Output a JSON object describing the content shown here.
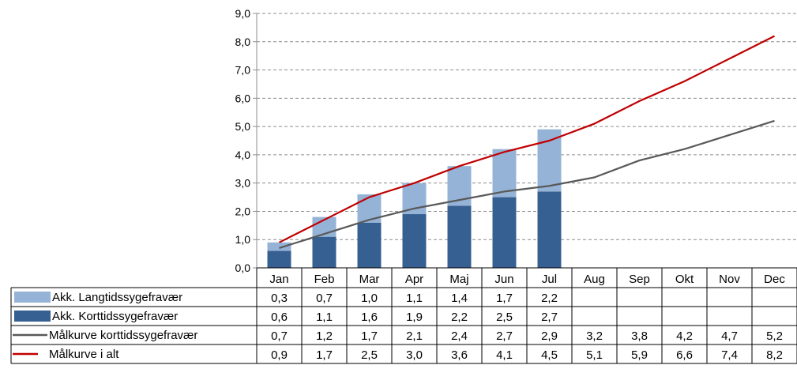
{
  "chart_data": {
    "type": "bar",
    "stacked": true,
    "title": "",
    "xlabel": "",
    "ylabel": "",
    "ylim": [
      0,
      9
    ],
    "yticks": [
      "0,0",
      "1,0",
      "2,0",
      "3,0",
      "4,0",
      "5,0",
      "6,0",
      "7,0",
      "8,0",
      "9,0"
    ],
    "grid": "dashed-horizontal",
    "categories": [
      "Jan",
      "Feb",
      "Mar",
      "Apr",
      "Maj",
      "Jun",
      "Jul",
      "Aug",
      "Sep",
      "Okt",
      "Nov",
      "Dec"
    ],
    "series": [
      {
        "name": "Akk. Korttidssygefravær",
        "kind": "bar",
        "color": "#376092",
        "values": [
          0.6,
          1.1,
          1.6,
          1.9,
          2.2,
          2.5,
          2.7,
          null,
          null,
          null,
          null,
          null
        ],
        "labels": [
          "0,6",
          "1,1",
          "1,6",
          "1,9",
          "2,2",
          "2,5",
          "2,7",
          "",
          "",
          "",
          "",
          ""
        ]
      },
      {
        "name": "Akk. Langtidssygefravær",
        "kind": "bar",
        "color": "#95b3d7",
        "values": [
          0.3,
          0.7,
          1.0,
          1.1,
          1.4,
          1.7,
          2.2,
          null,
          null,
          null,
          null,
          null
        ],
        "labels": [
          "0,3",
          "0,7",
          "1,0",
          "1,1",
          "1,4",
          "1,7",
          "2,2",
          "",
          "",
          "",
          "",
          ""
        ]
      },
      {
        "name": "Målkurve korttidssygefravær",
        "kind": "line",
        "color": "#595959",
        "values": [
          0.7,
          1.2,
          1.7,
          2.1,
          2.4,
          2.7,
          2.9,
          3.2,
          3.8,
          4.2,
          4.7,
          5.2
        ],
        "labels": [
          "0,7",
          "1,2",
          "1,7",
          "2,1",
          "2,4",
          "2,7",
          "2,9",
          "3,2",
          "3,8",
          "4,2",
          "4,7",
          "5,2"
        ]
      },
      {
        "name": "Målkurve i alt",
        "kind": "line",
        "color": "#c00000",
        "values": [
          0.9,
          1.7,
          2.5,
          3.0,
          3.6,
          4.1,
          4.5,
          5.1,
          5.9,
          6.6,
          7.4,
          8.2
        ],
        "labels": [
          "0,9",
          "1,7",
          "2,5",
          "3,0",
          "3,6",
          "4,1",
          "4,5",
          "5,1",
          "5,9",
          "6,6",
          "7,4",
          "8,2"
        ]
      }
    ],
    "data_table": {
      "row_order": [
        "Akk. Langtidssygefravær",
        "Akk. Korttidssygefravær",
        "Målkurve korttidssygefravær",
        "Målkurve i alt"
      ]
    }
  }
}
